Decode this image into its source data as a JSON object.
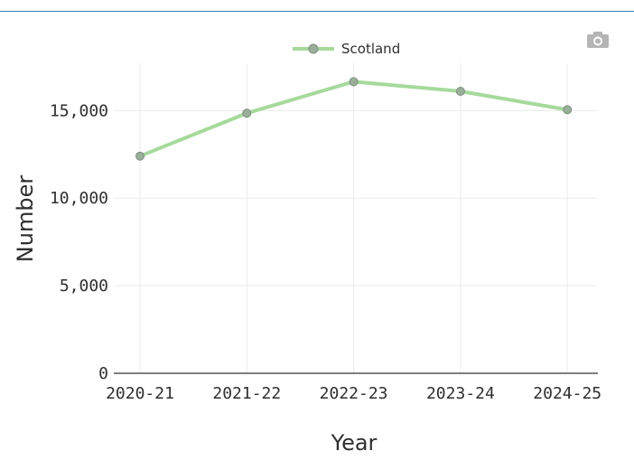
{
  "toolbar": {
    "camera_icon": "camera-icon"
  },
  "chart_data": {
    "type": "line",
    "title": "",
    "xlabel": "Year",
    "ylabel": "Number",
    "categories": [
      "2020-21",
      "2021-22",
      "2022-23",
      "2023-24",
      "2024-25"
    ],
    "series": [
      {
        "name": "Scotland",
        "values": [
          12400,
          14850,
          16650,
          16100,
          15050
        ],
        "color": "#a6d99c",
        "marker_color": "#9aaf9a"
      }
    ],
    "y_ticks": [
      0,
      5000,
      10000,
      15000
    ],
    "y_tick_labels": [
      "0",
      "5,000",
      "10,000",
      "15,000"
    ],
    "ylim": [
      0,
      17700
    ],
    "grid": true,
    "legend_position": "top-center"
  }
}
